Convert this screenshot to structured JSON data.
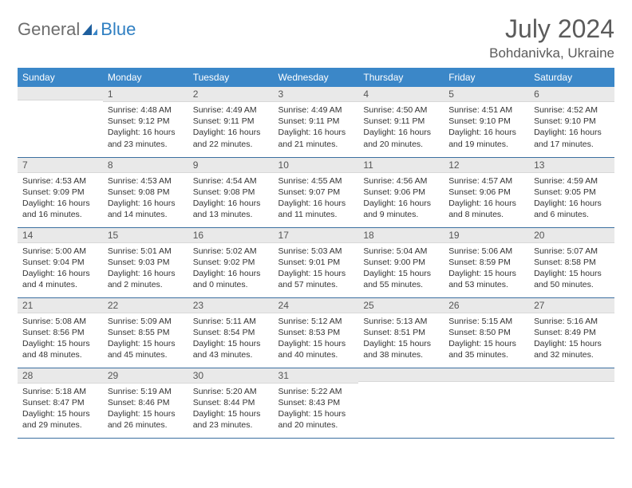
{
  "brand": {
    "text1": "General",
    "text2": "Blue"
  },
  "title": "July 2024",
  "location": "Bohdanivka, Ukraine",
  "colors": {
    "header_bg": "#3b87c8",
    "header_fg": "#ffffff",
    "daynum_bg": "#e9e9e9",
    "rule": "#3b6fa0",
    "logo_gray": "#6d6d6d",
    "logo_blue": "#2f7fc2"
  },
  "weekdays": [
    "Sunday",
    "Monday",
    "Tuesday",
    "Wednesday",
    "Thursday",
    "Friday",
    "Saturday"
  ],
  "weeks": [
    [
      {
        "n": "",
        "sr": "",
        "ss": "",
        "dl": ""
      },
      {
        "n": "1",
        "sr": "Sunrise: 4:48 AM",
        "ss": "Sunset: 9:12 PM",
        "dl": "Daylight: 16 hours and 23 minutes."
      },
      {
        "n": "2",
        "sr": "Sunrise: 4:49 AM",
        "ss": "Sunset: 9:11 PM",
        "dl": "Daylight: 16 hours and 22 minutes."
      },
      {
        "n": "3",
        "sr": "Sunrise: 4:49 AM",
        "ss": "Sunset: 9:11 PM",
        "dl": "Daylight: 16 hours and 21 minutes."
      },
      {
        "n": "4",
        "sr": "Sunrise: 4:50 AM",
        "ss": "Sunset: 9:11 PM",
        "dl": "Daylight: 16 hours and 20 minutes."
      },
      {
        "n": "5",
        "sr": "Sunrise: 4:51 AM",
        "ss": "Sunset: 9:10 PM",
        "dl": "Daylight: 16 hours and 19 minutes."
      },
      {
        "n": "6",
        "sr": "Sunrise: 4:52 AM",
        "ss": "Sunset: 9:10 PM",
        "dl": "Daylight: 16 hours and 17 minutes."
      }
    ],
    [
      {
        "n": "7",
        "sr": "Sunrise: 4:53 AM",
        "ss": "Sunset: 9:09 PM",
        "dl": "Daylight: 16 hours and 16 minutes."
      },
      {
        "n": "8",
        "sr": "Sunrise: 4:53 AM",
        "ss": "Sunset: 9:08 PM",
        "dl": "Daylight: 16 hours and 14 minutes."
      },
      {
        "n": "9",
        "sr": "Sunrise: 4:54 AM",
        "ss": "Sunset: 9:08 PM",
        "dl": "Daylight: 16 hours and 13 minutes."
      },
      {
        "n": "10",
        "sr": "Sunrise: 4:55 AM",
        "ss": "Sunset: 9:07 PM",
        "dl": "Daylight: 16 hours and 11 minutes."
      },
      {
        "n": "11",
        "sr": "Sunrise: 4:56 AM",
        "ss": "Sunset: 9:06 PM",
        "dl": "Daylight: 16 hours and 9 minutes."
      },
      {
        "n": "12",
        "sr": "Sunrise: 4:57 AM",
        "ss": "Sunset: 9:06 PM",
        "dl": "Daylight: 16 hours and 8 minutes."
      },
      {
        "n": "13",
        "sr": "Sunrise: 4:59 AM",
        "ss": "Sunset: 9:05 PM",
        "dl": "Daylight: 16 hours and 6 minutes."
      }
    ],
    [
      {
        "n": "14",
        "sr": "Sunrise: 5:00 AM",
        "ss": "Sunset: 9:04 PM",
        "dl": "Daylight: 16 hours and 4 minutes."
      },
      {
        "n": "15",
        "sr": "Sunrise: 5:01 AM",
        "ss": "Sunset: 9:03 PM",
        "dl": "Daylight: 16 hours and 2 minutes."
      },
      {
        "n": "16",
        "sr": "Sunrise: 5:02 AM",
        "ss": "Sunset: 9:02 PM",
        "dl": "Daylight: 16 hours and 0 minutes."
      },
      {
        "n": "17",
        "sr": "Sunrise: 5:03 AM",
        "ss": "Sunset: 9:01 PM",
        "dl": "Daylight: 15 hours and 57 minutes."
      },
      {
        "n": "18",
        "sr": "Sunrise: 5:04 AM",
        "ss": "Sunset: 9:00 PM",
        "dl": "Daylight: 15 hours and 55 minutes."
      },
      {
        "n": "19",
        "sr": "Sunrise: 5:06 AM",
        "ss": "Sunset: 8:59 PM",
        "dl": "Daylight: 15 hours and 53 minutes."
      },
      {
        "n": "20",
        "sr": "Sunrise: 5:07 AM",
        "ss": "Sunset: 8:58 PM",
        "dl": "Daylight: 15 hours and 50 minutes."
      }
    ],
    [
      {
        "n": "21",
        "sr": "Sunrise: 5:08 AM",
        "ss": "Sunset: 8:56 PM",
        "dl": "Daylight: 15 hours and 48 minutes."
      },
      {
        "n": "22",
        "sr": "Sunrise: 5:09 AM",
        "ss": "Sunset: 8:55 PM",
        "dl": "Daylight: 15 hours and 45 minutes."
      },
      {
        "n": "23",
        "sr": "Sunrise: 5:11 AM",
        "ss": "Sunset: 8:54 PM",
        "dl": "Daylight: 15 hours and 43 minutes."
      },
      {
        "n": "24",
        "sr": "Sunrise: 5:12 AM",
        "ss": "Sunset: 8:53 PM",
        "dl": "Daylight: 15 hours and 40 minutes."
      },
      {
        "n": "25",
        "sr": "Sunrise: 5:13 AM",
        "ss": "Sunset: 8:51 PM",
        "dl": "Daylight: 15 hours and 38 minutes."
      },
      {
        "n": "26",
        "sr": "Sunrise: 5:15 AM",
        "ss": "Sunset: 8:50 PM",
        "dl": "Daylight: 15 hours and 35 minutes."
      },
      {
        "n": "27",
        "sr": "Sunrise: 5:16 AM",
        "ss": "Sunset: 8:49 PM",
        "dl": "Daylight: 15 hours and 32 minutes."
      }
    ],
    [
      {
        "n": "28",
        "sr": "Sunrise: 5:18 AM",
        "ss": "Sunset: 8:47 PM",
        "dl": "Daylight: 15 hours and 29 minutes."
      },
      {
        "n": "29",
        "sr": "Sunrise: 5:19 AM",
        "ss": "Sunset: 8:46 PM",
        "dl": "Daylight: 15 hours and 26 minutes."
      },
      {
        "n": "30",
        "sr": "Sunrise: 5:20 AM",
        "ss": "Sunset: 8:44 PM",
        "dl": "Daylight: 15 hours and 23 minutes."
      },
      {
        "n": "31",
        "sr": "Sunrise: 5:22 AM",
        "ss": "Sunset: 8:43 PM",
        "dl": "Daylight: 15 hours and 20 minutes."
      },
      {
        "n": "",
        "sr": "",
        "ss": "",
        "dl": ""
      },
      {
        "n": "",
        "sr": "",
        "ss": "",
        "dl": ""
      },
      {
        "n": "",
        "sr": "",
        "ss": "",
        "dl": ""
      }
    ]
  ]
}
